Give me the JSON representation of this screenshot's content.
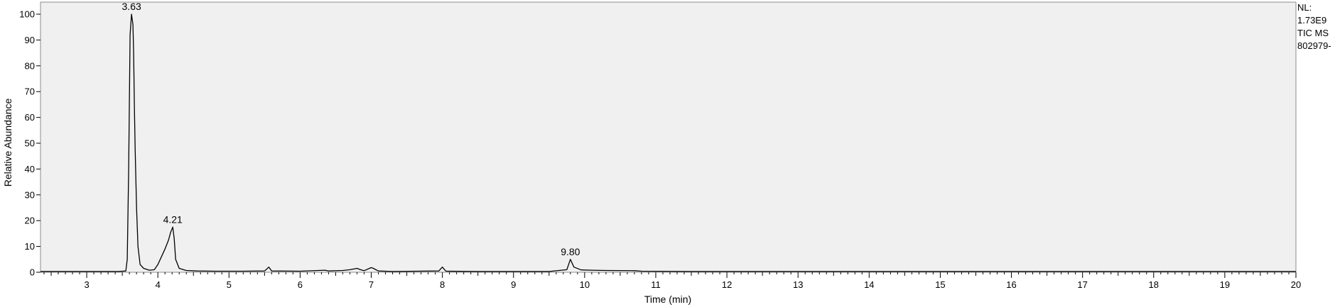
{
  "chart_data": {
    "type": "line",
    "xlabel": "Time (min)",
    "ylabel": "Relative Abundance",
    "xlim": [
      2.35,
      20.0
    ],
    "ylim": [
      0,
      100
    ],
    "x_ticks": [
      "3",
      "4",
      "5",
      "6",
      "7",
      "8",
      "9",
      "10",
      "11",
      "12",
      "13",
      "14",
      "15",
      "16",
      "17",
      "18",
      "19",
      "20"
    ],
    "y_ticks": [
      "0",
      "10",
      "20",
      "30",
      "40",
      "50",
      "60",
      "70",
      "80",
      "90",
      "100"
    ],
    "peak_labels": [
      {
        "text": "3.63",
        "x": 3.63,
        "y": 100
      },
      {
        "text": "4.21",
        "x": 4.21,
        "y": 17.5
      },
      {
        "text": "9.80",
        "x": 9.8,
        "y": 5
      }
    ],
    "series": [
      {
        "x": [
          2.35,
          3.45,
          3.55,
          3.57,
          3.59,
          3.61,
          3.63,
          3.65,
          3.66,
          3.67,
          3.68,
          3.7,
          3.72,
          3.75,
          3.8,
          3.88,
          3.95,
          4.0,
          4.05,
          4.1,
          4.15,
          4.18,
          4.21,
          4.23,
          4.25,
          4.3,
          4.4,
          4.55,
          4.8,
          5.2,
          5.5,
          5.56,
          5.6,
          6.0,
          6.35,
          6.4,
          6.6,
          6.7,
          6.8,
          6.85,
          6.9,
          7.0,
          7.03,
          7.1,
          7.3,
          7.95,
          8.0,
          8.05,
          8.5,
          9.5,
          9.75,
          9.8,
          9.85,
          9.95,
          10.1,
          10.3,
          10.7,
          10.8,
          11.5,
          13.0,
          15.0,
          17.0,
          19.0,
          20.0
        ],
        "y": [
          0.3,
          0.3,
          0.5,
          5,
          40,
          92,
          100,
          96,
          85,
          65,
          48,
          25,
          10,
          3,
          1.5,
          0.8,
          1.0,
          3.0,
          6.0,
          9.0,
          12.5,
          15.5,
          17.5,
          13,
          5,
          1.5,
          0.7,
          0.5,
          0.4,
          0.4,
          0.5,
          2,
          0.5,
          0.4,
          0.8,
          0.5,
          0.7,
          1.0,
          1.5,
          1.0,
          0.6,
          1.8,
          1.5,
          0.5,
          0.3,
          0.5,
          2,
          0.4,
          0.3,
          0.3,
          1.0,
          5,
          2.0,
          0.9,
          0.8,
          0.7,
          0.6,
          0.4,
          0.3,
          0.3,
          0.3,
          0.3,
          0.3,
          0.3
        ]
      }
    ]
  },
  "side_info": {
    "nl_label": "NL:",
    "nl_value": "1.73E9",
    "filter": "TIC  MS",
    "sample": "802979-"
  }
}
